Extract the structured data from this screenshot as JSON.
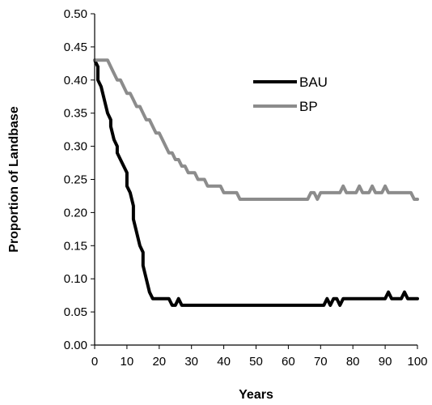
{
  "chart_data": {
    "type": "line",
    "title": "",
    "xlabel": "Years",
    "ylabel": "Proportion of Landbase",
    "xlim": [
      0,
      100
    ],
    "ylim": [
      0.0,
      0.5
    ],
    "x_ticks": [
      0,
      10,
      20,
      30,
      40,
      50,
      60,
      70,
      80,
      90,
      100
    ],
    "x_tick_labels": [
      "0",
      "10",
      "20",
      "30",
      "40",
      "50",
      "60",
      "70",
      "80",
      "90",
      "100"
    ],
    "y_ticks": [
      0.0,
      0.05,
      0.1,
      0.15,
      0.2,
      0.25,
      0.3,
      0.35,
      0.4,
      0.45,
      0.5
    ],
    "y_tick_labels": [
      "0.00",
      "0.05",
      "0.10",
      "0.15",
      "0.20",
      "0.25",
      "0.30",
      "0.35",
      "0.40",
      "0.45",
      "0.50"
    ],
    "grid": false,
    "legend_position": "top-right",
    "series": [
      {
        "name": "BAU",
        "color": "#000000",
        "points": [
          [
            0,
            0.43
          ],
          [
            1,
            0.42
          ],
          [
            1,
            0.4
          ],
          [
            2,
            0.39
          ],
          [
            3,
            0.37
          ],
          [
            4,
            0.35
          ],
          [
            5,
            0.34
          ],
          [
            5,
            0.33
          ],
          [
            6,
            0.31
          ],
          [
            7,
            0.3
          ],
          [
            7,
            0.29
          ],
          [
            8,
            0.28
          ],
          [
            9,
            0.27
          ],
          [
            10,
            0.26
          ],
          [
            10,
            0.24
          ],
          [
            11,
            0.23
          ],
          [
            12,
            0.21
          ],
          [
            12,
            0.19
          ],
          [
            13,
            0.17
          ],
          [
            14,
            0.15
          ],
          [
            15,
            0.14
          ],
          [
            15,
            0.12
          ],
          [
            16,
            0.1
          ],
          [
            17,
            0.08
          ],
          [
            18,
            0.07
          ],
          [
            23,
            0.07
          ],
          [
            24,
            0.06
          ],
          [
            25,
            0.06
          ],
          [
            26,
            0.07
          ],
          [
            27,
            0.06
          ],
          [
            71,
            0.06
          ],
          [
            72,
            0.07
          ],
          [
            73,
            0.06
          ],
          [
            74,
            0.07
          ],
          [
            75,
            0.07
          ],
          [
            76,
            0.06
          ],
          [
            77,
            0.07
          ],
          [
            90,
            0.07
          ],
          [
            91,
            0.08
          ],
          [
            92,
            0.07
          ],
          [
            95,
            0.07
          ],
          [
            96,
            0.08
          ],
          [
            97,
            0.07
          ],
          [
            100,
            0.07
          ]
        ]
      },
      {
        "name": "BP",
        "color": "#8c8c8c",
        "points": [
          [
            0,
            0.43
          ],
          [
            4,
            0.43
          ],
          [
            5,
            0.42
          ],
          [
            6,
            0.41
          ],
          [
            7,
            0.4
          ],
          [
            8,
            0.4
          ],
          [
            9,
            0.39
          ],
          [
            10,
            0.38
          ],
          [
            11,
            0.38
          ],
          [
            12,
            0.37
          ],
          [
            13,
            0.36
          ],
          [
            14,
            0.36
          ],
          [
            15,
            0.35
          ],
          [
            16,
            0.34
          ],
          [
            17,
            0.34
          ],
          [
            18,
            0.33
          ],
          [
            19,
            0.32
          ],
          [
            20,
            0.32
          ],
          [
            21,
            0.31
          ],
          [
            22,
            0.3
          ],
          [
            23,
            0.29
          ],
          [
            24,
            0.29
          ],
          [
            25,
            0.28
          ],
          [
            26,
            0.28
          ],
          [
            27,
            0.27
          ],
          [
            28,
            0.27
          ],
          [
            29,
            0.26
          ],
          [
            31,
            0.26
          ],
          [
            32,
            0.25
          ],
          [
            34,
            0.25
          ],
          [
            35,
            0.24
          ],
          [
            39,
            0.24
          ],
          [
            40,
            0.23
          ],
          [
            44,
            0.23
          ],
          [
            45,
            0.22
          ],
          [
            66,
            0.22
          ],
          [
            67,
            0.23
          ],
          [
            68,
            0.23
          ],
          [
            69,
            0.22
          ],
          [
            70,
            0.23
          ],
          [
            76,
            0.23
          ],
          [
            77,
            0.24
          ],
          [
            78,
            0.23
          ],
          [
            81,
            0.23
          ],
          [
            82,
            0.24
          ],
          [
            83,
            0.23
          ],
          [
            85,
            0.23
          ],
          [
            86,
            0.24
          ],
          [
            87,
            0.23
          ],
          [
            89,
            0.23
          ],
          [
            90,
            0.24
          ],
          [
            91,
            0.23
          ],
          [
            98,
            0.23
          ],
          [
            99,
            0.22
          ],
          [
            100,
            0.22
          ]
        ]
      }
    ]
  }
}
